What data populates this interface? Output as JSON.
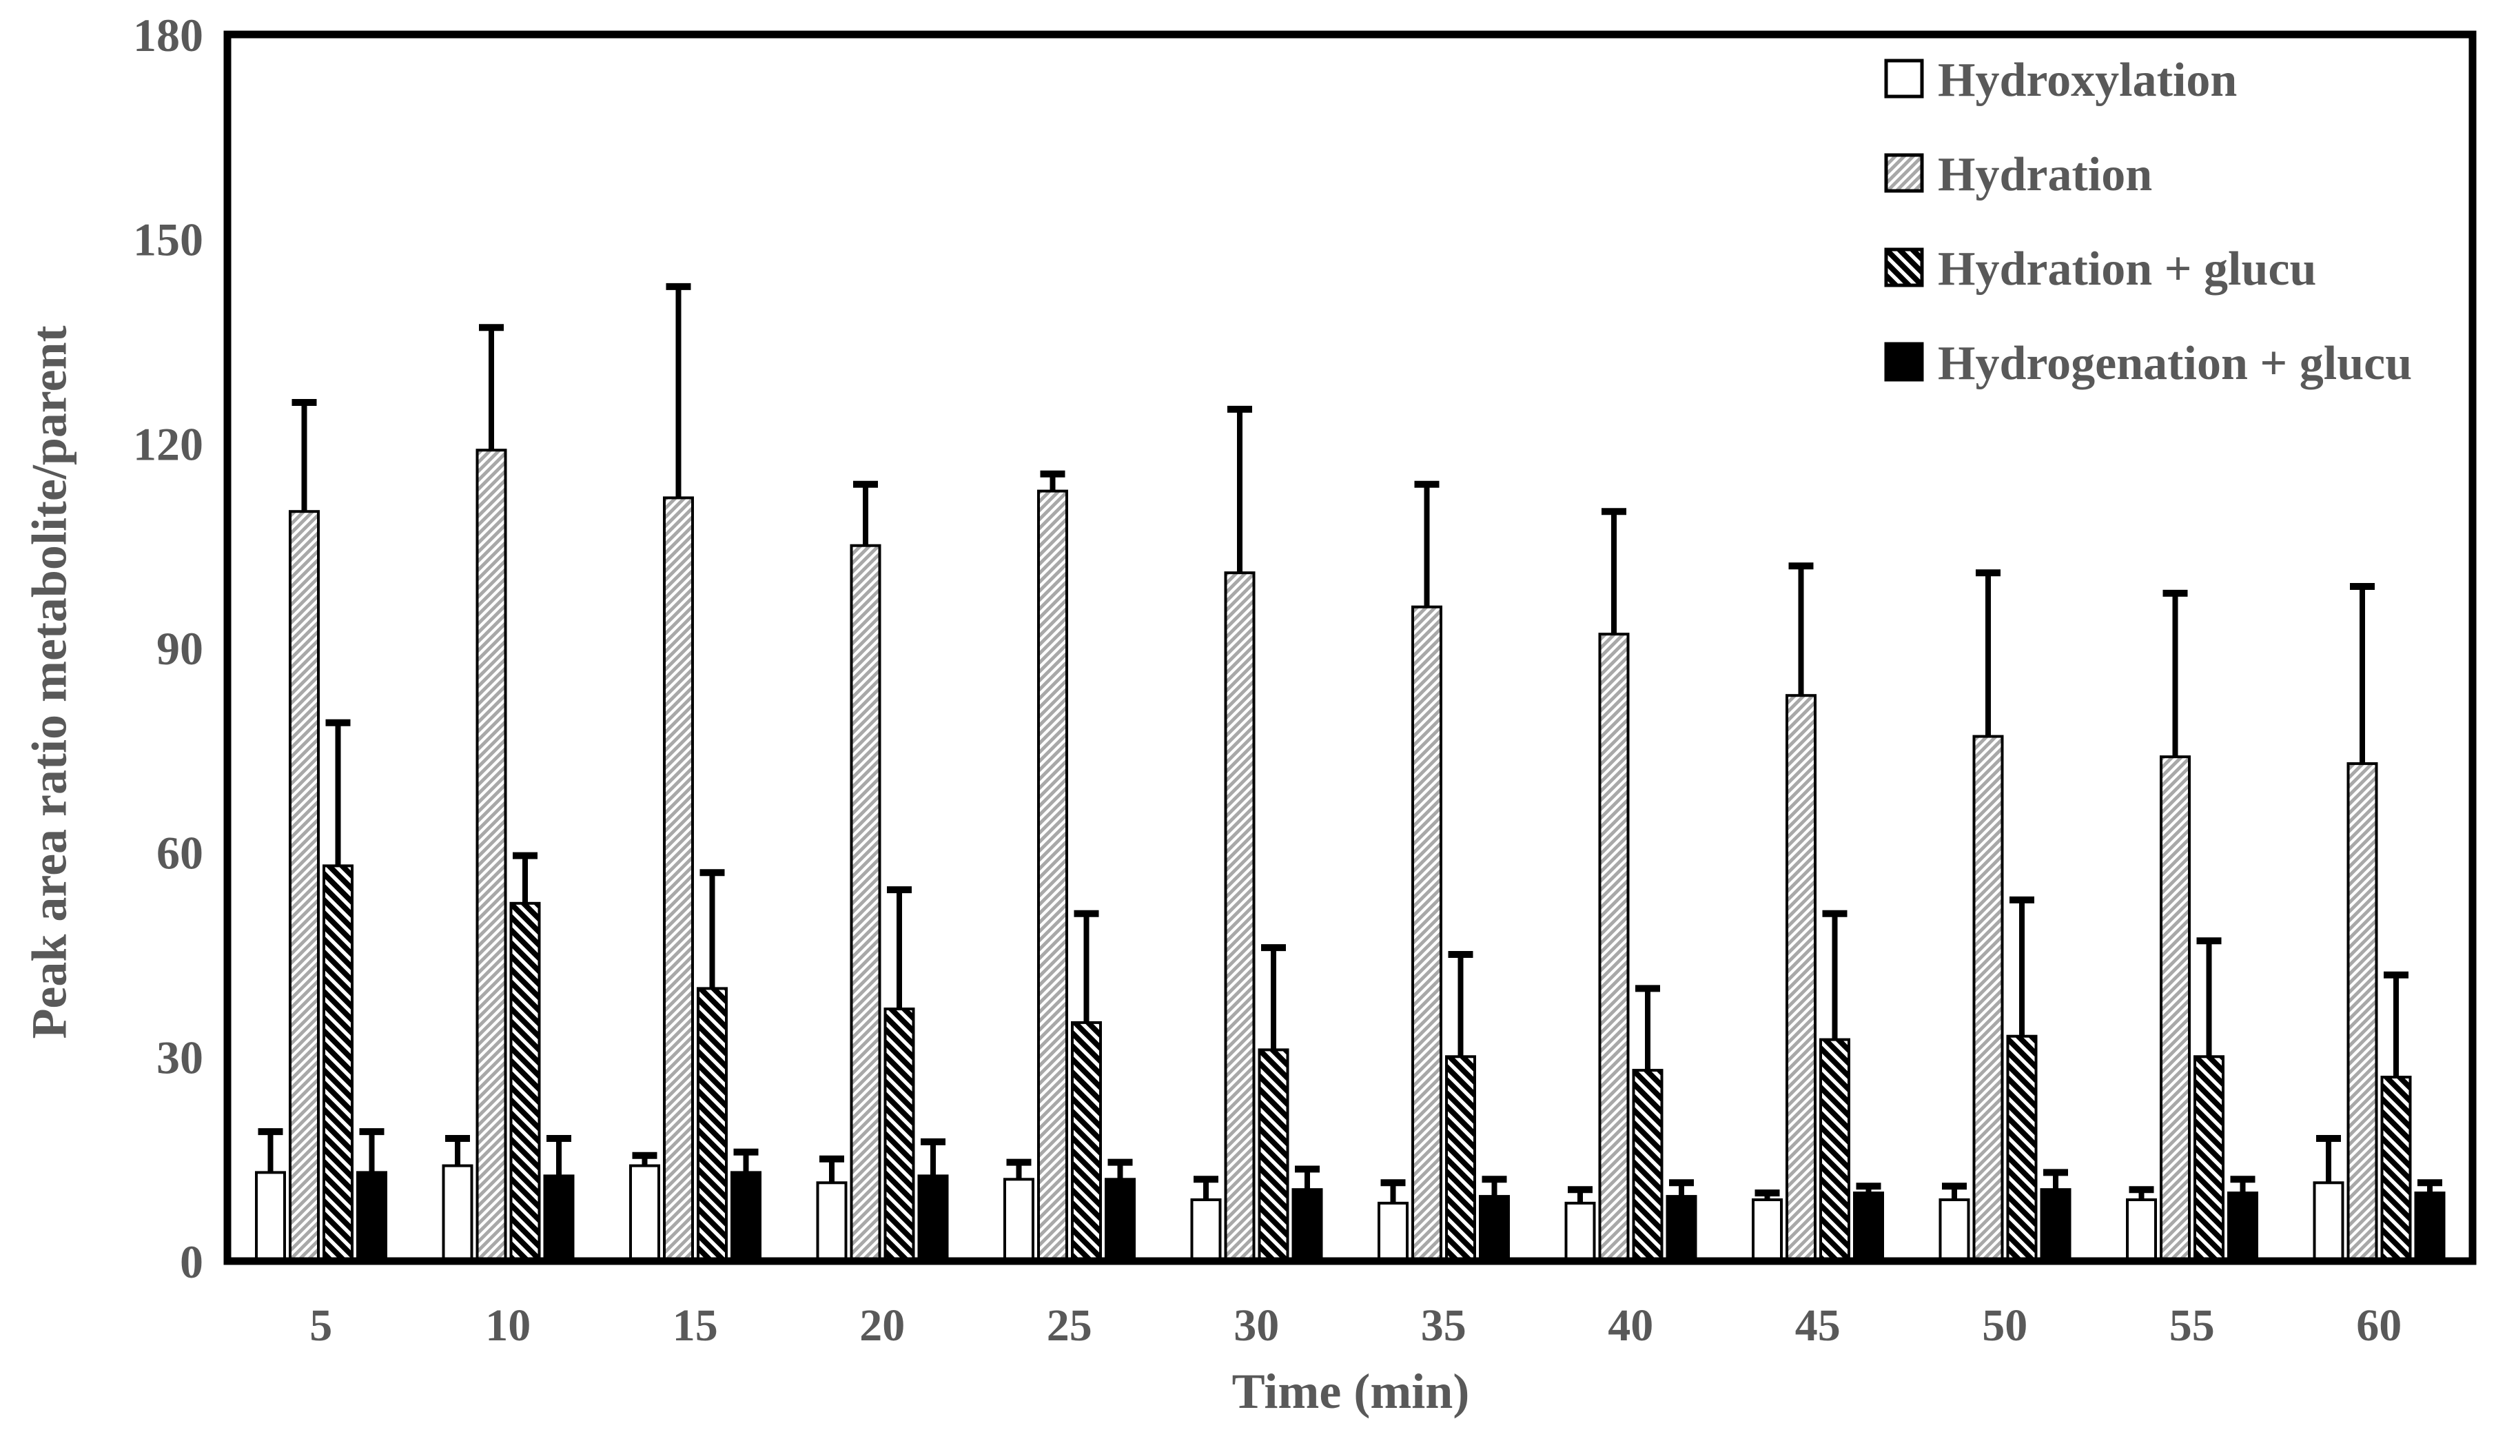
{
  "chart_data": {
    "type": "bar",
    "title": "",
    "xlabel": "Time (min)",
    "ylabel": "Peak area ratio metabolite/parent",
    "categories": [
      "5",
      "10",
      "15",
      "20",
      "25",
      "30",
      "35",
      "40",
      "45",
      "50",
      "55",
      "60"
    ],
    "ylim": [
      0,
      180
    ],
    "ytick_step": 30,
    "ytick_labels": [
      "0",
      "30",
      "60",
      "90",
      "120",
      "150",
      "180"
    ],
    "grid": false,
    "legend_position": "top-right-inside",
    "error_bars": "upper",
    "series": [
      {
        "name": "Hydroxylation",
        "style": "open-white",
        "values": [
          13,
          14,
          14,
          11.5,
          12,
          9,
          8.5,
          8.5,
          9,
          9,
          9,
          11.5
        ],
        "errors_up": [
          6,
          4,
          1.5,
          3.5,
          2.5,
          3,
          3,
          2,
          1,
          2,
          1.5,
          6.5
        ]
      },
      {
        "name": "Hydration",
        "style": "hatch-forward-gray",
        "values": [
          110,
          119,
          112,
          105,
          113,
          101,
          96,
          92,
          83,
          77,
          74,
          73
        ],
        "errors_up": [
          16,
          18,
          31,
          9,
          2.5,
          24,
          18,
          18,
          19,
          24,
          24,
          26
        ]
      },
      {
        "name": "Hydration + glucu",
        "style": "hatch-back-black",
        "values": [
          58,
          52.5,
          40,
          37,
          35,
          31,
          30,
          28,
          32.5,
          33,
          30,
          27
        ],
        "errors_up": [
          21,
          7,
          17,
          17.5,
          16,
          15,
          15,
          12,
          18.5,
          20,
          17,
          15
        ]
      },
      {
        "name": "Hydrogenation + glucu",
        "style": "solid-black",
        "values": [
          13,
          12.5,
          13,
          12.5,
          12,
          10.5,
          9.5,
          9.5,
          10,
          10.5,
          10,
          10
        ],
        "errors_up": [
          6,
          5.5,
          3,
          5,
          2.5,
          3,
          2.5,
          2,
          1,
          2.5,
          2,
          1.5
        ]
      }
    ],
    "colors": {
      "text": "#595959",
      "axis": "#000000",
      "hatch_gray": "#a8a8a8",
      "bar_fill_white": "#ffffff",
      "bar_fill_black": "#000000"
    }
  }
}
